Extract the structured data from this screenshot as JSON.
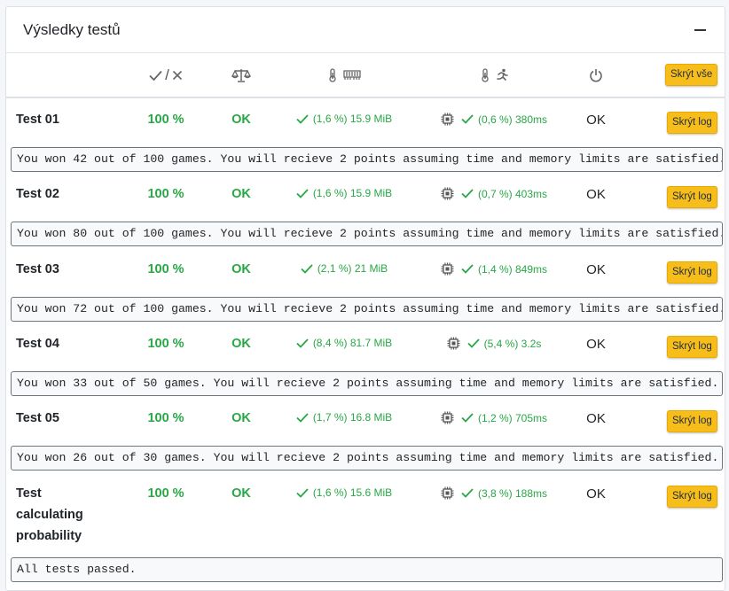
{
  "panel": {
    "title": "Výsledky testů",
    "collapse_icon": "minus-icon"
  },
  "header": {
    "score_icons": [
      "check-icon",
      "x-icon"
    ],
    "score_separator": "/",
    "status_icon": "balance-scale-icon",
    "memory_icons": [
      "thermometer-icon",
      "memory-icon"
    ],
    "time_icons": [
      "thermometer-icon",
      "running-icon"
    ],
    "exit_icon": "power-icon",
    "hide_all_label": "Skrýt vše"
  },
  "tests": [
    {
      "name": "Test 01",
      "score": "100 %",
      "status": "OK",
      "memory": "(1,6 %) 15.9 MiB",
      "time": "(0,6 %) 380ms",
      "exit": "OK",
      "hide_log_label": "Skrýt log",
      "log": "You won 42 out of 100 games. You will recieve 2 points assuming time and memory limits are satisfied."
    },
    {
      "name": "Test 02",
      "score": "100 %",
      "status": "OK",
      "memory": "(1,6 %) 15.9 MiB",
      "time": "(0,7 %) 403ms",
      "exit": "OK",
      "hide_log_label": "Skrýt log",
      "log": "You won 80 out of 100 games. You will recieve 2 points assuming time and memory limits are satisfied."
    },
    {
      "name": "Test 03",
      "score": "100 %",
      "status": "OK",
      "memory": "(2,1 %) 21 MiB",
      "time": "(1,4 %) 849ms",
      "exit": "OK",
      "hide_log_label": "Skrýt log",
      "log": "You won 72 out of 100 games. You will recieve 2 points assuming time and memory limits are satisfied."
    },
    {
      "name": "Test 04",
      "score": "100 %",
      "status": "OK",
      "memory": "(8,4 %) 81.7 MiB",
      "time": "(5,4 %) 3.2s",
      "exit": "OK",
      "hide_log_label": "Skrýt log",
      "log": "You won 33 out of 50 games. You will recieve 2 points assuming time and memory limits are satisfied."
    },
    {
      "name": "Test 05",
      "score": "100 %",
      "status": "OK",
      "memory": "(1,7 %) 16.8 MiB",
      "time": "(1,2 %) 705ms",
      "exit": "OK",
      "hide_log_label": "Skrýt log",
      "log": "You won 26 out of 30 games. You will recieve 2 points assuming time and memory limits are satisfied."
    },
    {
      "name": "Test calculating probability",
      "score": "100 %",
      "status": "OK",
      "memory": "(1,6 %) 15.6 MiB",
      "time": "(3,8 %) 188ms",
      "exit": "OK",
      "hide_log_label": "Skrýt log",
      "log": "All tests passed."
    }
  ],
  "colors": {
    "success": "#28a745",
    "button": "#f7bd1b"
  }
}
